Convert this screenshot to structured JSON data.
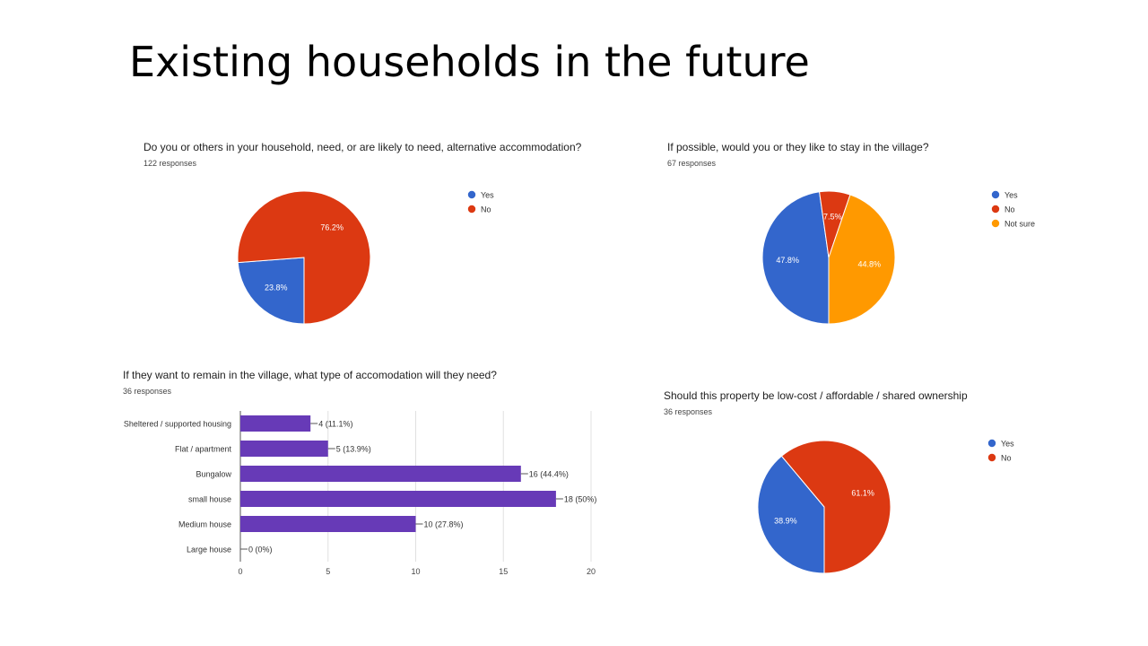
{
  "slide": {
    "title": "Existing households in the future"
  },
  "chart_data": [
    {
      "type": "pie",
      "title": "Do you or others in your household, need, or are likely to  need, alternative accommodation?",
      "subtitle": "122 responses",
      "slices": [
        {
          "label": "Yes",
          "value": 23.8,
          "value_label": "23.8%",
          "color": "#3366cc"
        },
        {
          "label": "No",
          "value": 76.2,
          "value_label": "76.2%",
          "color": "#dc3912"
        }
      ],
      "legend_position": "right"
    },
    {
      "type": "pie",
      "title": "If possible, would you or they like to stay in the village?",
      "subtitle": "67 responses",
      "slices": [
        {
          "label": "Yes",
          "value": 47.8,
          "value_label": "47.8%",
          "color": "#3366cc"
        },
        {
          "label": "No",
          "value": 7.5,
          "value_label": "7.5%",
          "color": "#dc3912"
        },
        {
          "label": "Not sure",
          "value": 44.8,
          "value_label": "44.8%",
          "color": "#ff9900"
        }
      ],
      "legend_position": "right"
    },
    {
      "type": "bar",
      "orientation": "horizontal",
      "title": "If they want to remain in the village, what type of accomodation will they need?",
      "subtitle": "36 responses",
      "categories": [
        "Sheltered / supported housing",
        "Flat / apartment",
        "Bungalow",
        "small house",
        "Medium house",
        "Large house"
      ],
      "values": [
        4,
        5,
        16,
        18,
        10,
        0
      ],
      "value_labels": [
        "4 (11.1%)",
        "5 (13.9%)",
        "16 (44.4%)",
        "18 (50%)",
        "10 (27.8%)",
        "0 (0%)"
      ],
      "xlim": [
        0,
        20
      ],
      "ticks": [
        0,
        5,
        10,
        15,
        20
      ],
      "bar_color": "#673ab7",
      "grid": true
    },
    {
      "type": "pie",
      "title": "Should this property be low-cost / affordable / shared ownership",
      "subtitle": "36 responses",
      "slices": [
        {
          "label": "Yes",
          "value": 38.9,
          "value_label": "38.9%",
          "color": "#3366cc"
        },
        {
          "label": "No",
          "value": 61.1,
          "value_label": "61.1%",
          "color": "#dc3912"
        }
      ],
      "legend_position": "right"
    }
  ]
}
